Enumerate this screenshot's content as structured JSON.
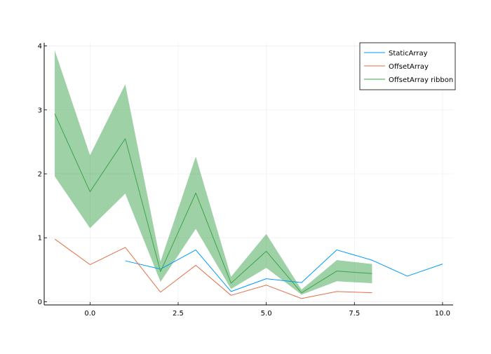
{
  "chart_data": {
    "type": "line",
    "xlim": [
      -1.3,
      10.3
    ],
    "ylim": [
      -0.05,
      4.05
    ],
    "x_ticks": [
      0,
      2.5,
      5,
      7.5,
      10
    ],
    "x_tick_labels": [
      "0.0",
      "2.5",
      "5.0",
      "7.5",
      "10.0"
    ],
    "y_ticks": [
      0,
      1,
      2,
      3,
      4
    ],
    "y_tick_labels": [
      "0",
      "1",
      "2",
      "3",
      "4"
    ],
    "grid": true,
    "legend_position": "top-right",
    "series": [
      {
        "name": "StaticArray",
        "color": "#009AF9",
        "x": [
          1,
          2,
          3,
          4,
          5,
          6,
          7,
          8,
          9,
          10
        ],
        "y": [
          0.64,
          0.51,
          0.81,
          0.16,
          0.36,
          0.3,
          0.81,
          0.65,
          0.4,
          0.59
        ]
      },
      {
        "name": "OffsetArray",
        "color": "#E26F46",
        "x": [
          -1,
          0,
          1,
          2,
          3,
          4,
          5,
          6,
          7,
          8
        ],
        "y": [
          0.98,
          0.58,
          0.85,
          0.15,
          0.57,
          0.1,
          0.26,
          0.05,
          0.16,
          0.14
        ]
      },
      {
        "name": "OffsetArray ribbon",
        "color": "#3DA44D",
        "ribbon_color": "#3DA44D",
        "ribbon_opacity": 0.5,
        "x": [
          -1,
          0,
          1,
          2,
          3,
          4,
          5,
          6,
          7,
          8
        ],
        "y": [
          2.94,
          1.72,
          2.55,
          0.47,
          1.7,
          0.29,
          0.79,
          0.14,
          0.48,
          0.44
        ],
        "lower": [
          1.96,
          1.15,
          1.69,
          0.31,
          1.14,
          0.2,
          0.53,
          0.11,
          0.32,
          0.29
        ],
        "upper": [
          3.93,
          2.29,
          3.4,
          0.63,
          2.27,
          0.39,
          1.06,
          0.19,
          0.65,
          0.59
        ]
      }
    ]
  }
}
